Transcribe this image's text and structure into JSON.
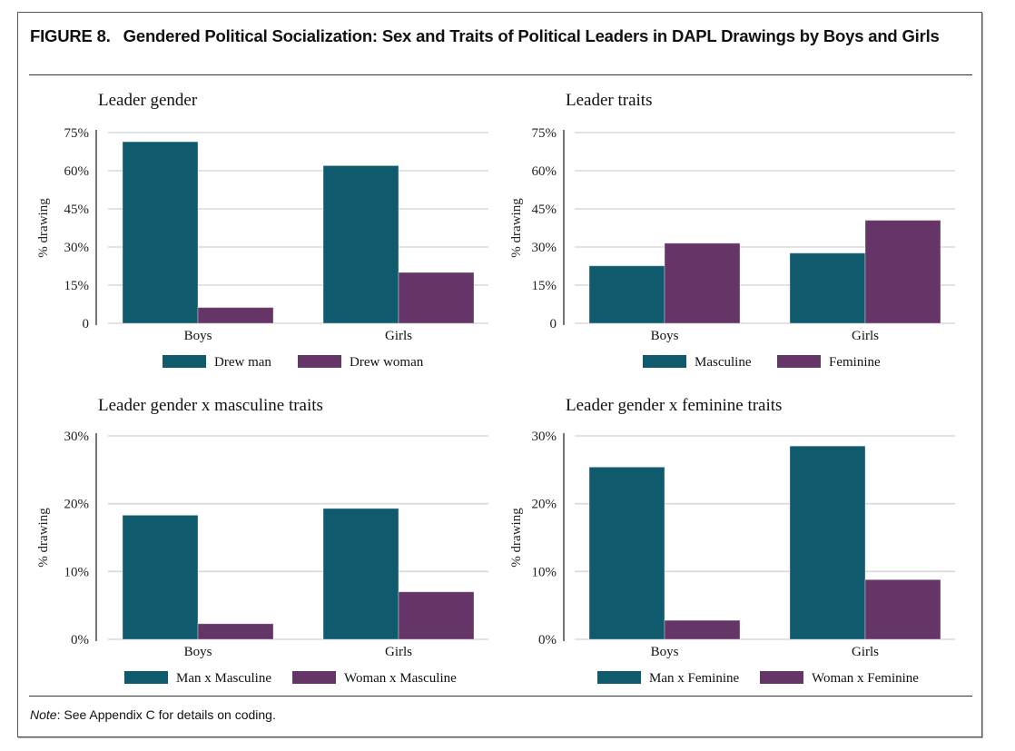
{
  "figure": {
    "number": "FIGURE 8.",
    "title": "Gendered Political Socialization: Sex and Traits of Political Leaders in DAPL Drawings by Boys and Girls",
    "note_label": "Note",
    "note_text": ": See Appendix C for details on coding."
  },
  "colors": {
    "series1": "#0f5a6d",
    "series2": "#643566",
    "grid": "#d9d9d9",
    "axis": "#555555"
  },
  "chart_data": [
    {
      "type": "bar",
      "title": "Leader gender",
      "ylabel": "% drawing",
      "xlabel": "",
      "categories": [
        "Boys",
        "Girls"
      ],
      "yticks": [
        0,
        15,
        30,
        45,
        60,
        75
      ],
      "ytick_labels": [
        "0",
        "15%",
        "30%",
        "45%",
        "60%",
        "75%"
      ],
      "ylim": [
        0,
        75
      ],
      "grid": true,
      "legend": "bottom",
      "series": [
        {
          "name": "Drew man",
          "values": [
            71.4,
            62
          ]
        },
        {
          "name": "Drew woman",
          "values": [
            6.2,
            20
          ]
        }
      ]
    },
    {
      "type": "bar",
      "title": "Leader traits",
      "ylabel": "% drawing",
      "xlabel": "",
      "categories": [
        "Boys",
        "Girls"
      ],
      "yticks": [
        0,
        15,
        30,
        45,
        60,
        75
      ],
      "ytick_labels": [
        "0",
        "15%",
        "30%",
        "45%",
        "60%",
        "75%"
      ],
      "ylim": [
        0,
        75
      ],
      "grid": true,
      "legend": "bottom",
      "series": [
        {
          "name": "Masculine",
          "values": [
            22.6,
            27.6
          ]
        },
        {
          "name": "Feminine",
          "values": [
            31.5,
            40.5
          ]
        }
      ]
    },
    {
      "type": "bar",
      "title": "Leader gender x masculine traits",
      "ylabel": "% drawing",
      "xlabel": "",
      "categories": [
        "Boys",
        "Girls"
      ],
      "yticks": [
        0,
        10,
        20,
        30
      ],
      "ytick_labels": [
        "0%",
        "10%",
        "20%",
        "30%"
      ],
      "ylim": [
        0,
        30
      ],
      "grid": true,
      "legend": "bottom",
      "series": [
        {
          "name": "Man x Masculine",
          "values": [
            18.3,
            19.3
          ]
        },
        {
          "name": "Woman x Masculine",
          "values": [
            2.3,
            7.0
          ]
        }
      ]
    },
    {
      "type": "bar",
      "title": "Leader gender x feminine traits",
      "ylabel": "% drawing",
      "xlabel": "",
      "categories": [
        "Boys",
        "Girls"
      ],
      "yticks": [
        0,
        10,
        20,
        30
      ],
      "ytick_labels": [
        "0%",
        "10%",
        "20%",
        "30%"
      ],
      "ylim": [
        0,
        30
      ],
      "grid": true,
      "legend": "bottom",
      "series": [
        {
          "name": "Man x Feminine",
          "values": [
            25.4,
            28.5
          ]
        },
        {
          "name": "Woman x Feminine",
          "values": [
            2.8,
            8.8
          ]
        }
      ]
    }
  ]
}
